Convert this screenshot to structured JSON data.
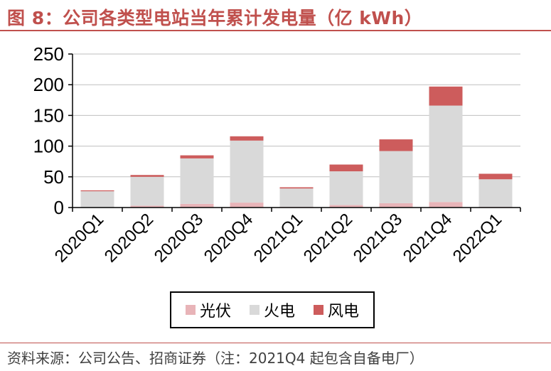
{
  "title": "图 8：公司各类型电站当年累计发电量（亿 kWh）",
  "source": "资料来源：公司公告、招商证券（注：2021Q4 起包含自备电厂）",
  "colors": {
    "accent": "#C0504D",
    "axis": "#000000",
    "grid": "#BFBFBF"
  },
  "chart_data": {
    "type": "bar",
    "stacked": true,
    "categories": [
      "2020Q1",
      "2020Q2",
      "2020Q3",
      "2020Q4",
      "2021Q1",
      "2021Q2",
      "2021Q3",
      "2021Q4",
      "2022Q1"
    ],
    "series": [
      {
        "name": "光伏",
        "color": "#E8B4B8",
        "values": [
          0.5,
          3,
          6,
          8,
          1,
          4,
          7,
          9,
          1
        ]
      },
      {
        "name": "火电",
        "color": "#D9D9D9",
        "values": [
          26,
          47,
          74,
          101,
          30,
          55,
          85,
          157,
          45
        ]
      },
      {
        "name": "风电",
        "color": "#CD5C5C",
        "values": [
          1.5,
          3,
          5,
          7,
          2,
          11,
          19,
          31,
          9
        ]
      }
    ],
    "ylim": [
      0,
      250
    ],
    "yticks": [
      0,
      50,
      100,
      150,
      200,
      250
    ],
    "grid": true,
    "legend": "bottom"
  }
}
